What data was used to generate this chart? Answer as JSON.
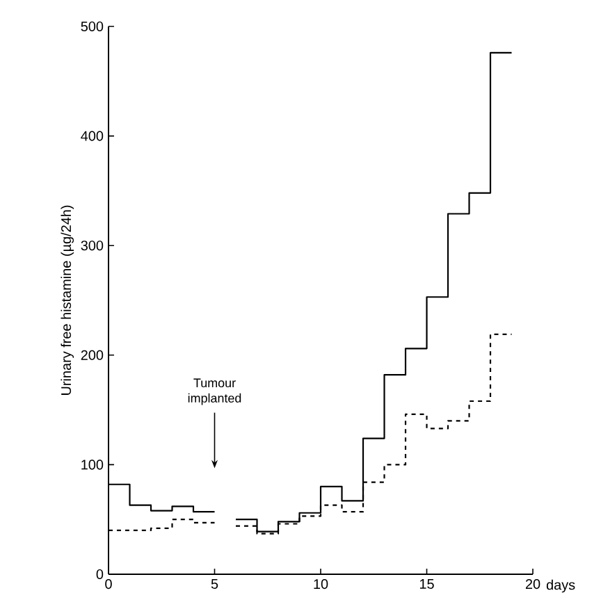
{
  "chart_data": {
    "type": "step",
    "ylabel": "Urinary free histamine (µg/24h)",
    "xlabel": "days",
    "x": [
      0,
      1,
      2,
      3,
      4,
      5,
      6,
      7,
      8,
      9,
      10,
      11,
      12,
      13,
      14,
      15,
      16,
      17,
      18,
      19
    ],
    "series": [
      {
        "color": "#000000",
        "line_style": "solid",
        "values": [
          82,
          63,
          58,
          62,
          57,
          null,
          50,
          39,
          48,
          56,
          80,
          67,
          124,
          182,
          206,
          253,
          329,
          348,
          476,
          476
        ]
      },
      {
        "color": "#000000",
        "line_style": "dashed",
        "values": [
          40,
          40,
          42,
          50,
          47,
          null,
          44,
          37,
          46,
          53,
          63,
          57,
          84,
          100,
          146,
          133,
          140,
          158,
          219,
          219
        ]
      }
    ],
    "xlim": [
      0,
      20
    ],
    "ylim": [
      0,
      500
    ],
    "xticks": [
      0,
      5,
      10,
      15,
      20
    ],
    "yticks": [
      0,
      100,
      200,
      300,
      400,
      500
    ],
    "annotations": [
      "Tumour implanted"
    ],
    "grid": false
  }
}
